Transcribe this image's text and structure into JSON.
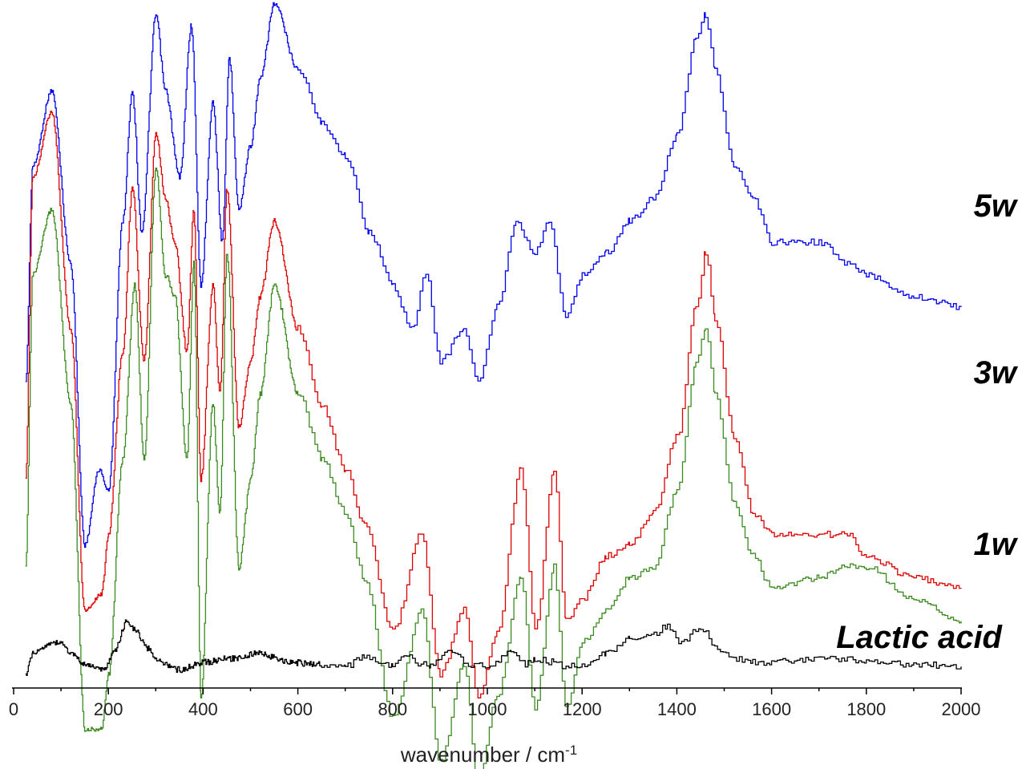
{
  "chart_data": {
    "type": "line",
    "title": "",
    "xlabel": "wavenumber / cm",
    "xlabel_superscript": "-1",
    "ylabel": "",
    "xlim": [
      20,
      2000
    ],
    "xticks": [
      0,
      200,
      400,
      600,
      800,
      1000,
      1200,
      1400,
      1600,
      1800,
      2000
    ],
    "y_axis_shown": false,
    "grid": false,
    "stacked_offsets": true,
    "series": [
      {
        "name": "5w",
        "color": "#0000ee",
        "label_position": "right",
        "points": [
          [
            25,
            350
          ],
          [
            40,
            150
          ],
          [
            80,
            80
          ],
          [
            120,
            240
          ],
          [
            150,
            500
          ],
          [
            180,
            430
          ],
          [
            200,
            450
          ],
          [
            230,
            200
          ],
          [
            250,
            80
          ],
          [
            270,
            210
          ],
          [
            300,
            10
          ],
          [
            320,
            80
          ],
          [
            350,
            160
          ],
          [
            375,
            20
          ],
          [
            395,
            260
          ],
          [
            420,
            90
          ],
          [
            440,
            220
          ],
          [
            455,
            50
          ],
          [
            475,
            190
          ],
          [
            500,
            130
          ],
          [
            520,
            70
          ],
          [
            550,
            0
          ],
          [
            600,
            60
          ],
          [
            650,
            110
          ],
          [
            700,
            140
          ],
          [
            750,
            210
          ],
          [
            800,
            260
          ],
          [
            840,
            300
          ],
          [
            870,
            250
          ],
          [
            900,
            330
          ],
          [
            950,
            300
          ],
          [
            980,
            350
          ],
          [
            1020,
            280
          ],
          [
            1060,
            200
          ],
          [
            1100,
            230
          ],
          [
            1130,
            200
          ],
          [
            1165,
            290
          ],
          [
            1200,
            250
          ],
          [
            1250,
            230
          ],
          [
            1300,
            200
          ],
          [
            1350,
            180
          ],
          [
            1400,
            120
          ],
          [
            1440,
            30
          ],
          [
            1460,
            10
          ],
          [
            1480,
            60
          ],
          [
            1520,
            150
          ],
          [
            1560,
            180
          ],
          [
            1600,
            220
          ],
          [
            1700,
            220
          ],
          [
            1760,
            240
          ],
          [
            1800,
            250
          ],
          [
            1900,
            270
          ],
          [
            2000,
            280
          ]
        ]
      },
      {
        "name": "3w",
        "color": "#dd0000",
        "label_position": "right",
        "points": [
          [
            25,
            440
          ],
          [
            40,
            160
          ],
          [
            80,
            100
          ],
          [
            120,
            300
          ],
          [
            150,
            560
          ],
          [
            185,
            545
          ],
          [
            200,
            490
          ],
          [
            230,
            320
          ],
          [
            250,
            170
          ],
          [
            275,
            330
          ],
          [
            300,
            120
          ],
          [
            320,
            180
          ],
          [
            340,
            220
          ],
          [
            365,
            320
          ],
          [
            380,
            190
          ],
          [
            395,
            440
          ],
          [
            420,
            260
          ],
          [
            435,
            360
          ],
          [
            450,
            170
          ],
          [
            475,
            390
          ],
          [
            500,
            330
          ],
          [
            520,
            270
          ],
          [
            550,
            200
          ],
          [
            600,
            300
          ],
          [
            650,
            370
          ],
          [
            700,
            430
          ],
          [
            740,
            480
          ],
          [
            800,
            580
          ],
          [
            860,
            490
          ],
          [
            900,
            620
          ],
          [
            950,
            560
          ],
          [
            980,
            640
          ],
          [
            1020,
            580
          ],
          [
            1070,
            430
          ],
          [
            1100,
            580
          ],
          [
            1140,
            430
          ],
          [
            1165,
            570
          ],
          [
            1200,
            550
          ],
          [
            1250,
            510
          ],
          [
            1300,
            500
          ],
          [
            1350,
            470
          ],
          [
            1400,
            400
          ],
          [
            1440,
            280
          ],
          [
            1460,
            230
          ],
          [
            1480,
            290
          ],
          [
            1520,
            400
          ],
          [
            1560,
            470
          ],
          [
            1600,
            490
          ],
          [
            1700,
            490
          ],
          [
            1760,
            490
          ],
          [
            1800,
            510
          ],
          [
            1900,
            530
          ],
          [
            2000,
            540
          ]
        ]
      },
      {
        "name": "1w",
        "color": "#3a8a1e",
        "label_position": "right",
        "points": [
          [
            25,
            520
          ],
          [
            40,
            250
          ],
          [
            80,
            190
          ],
          [
            120,
            370
          ],
          [
            150,
            670
          ],
          [
            185,
            670
          ],
          [
            200,
            620
          ],
          [
            230,
            420
          ],
          [
            255,
            260
          ],
          [
            275,
            420
          ],
          [
            300,
            150
          ],
          [
            320,
            250
          ],
          [
            340,
            270
          ],
          [
            365,
            420
          ],
          [
            380,
            240
          ],
          [
            395,
            640
          ],
          [
            420,
            370
          ],
          [
            435,
            470
          ],
          [
            450,
            230
          ],
          [
            475,
            520
          ],
          [
            500,
            440
          ],
          [
            520,
            360
          ],
          [
            550,
            260
          ],
          [
            600,
            360
          ],
          [
            650,
            420
          ],
          [
            700,
            470
          ],
          [
            740,
            530
          ],
          [
            800,
            660
          ],
          [
            860,
            560
          ],
          [
            900,
            700
          ],
          [
            950,
            610
          ],
          [
            980,
            720
          ],
          [
            1020,
            640
          ],
          [
            1070,
            530
          ],
          [
            1100,
            650
          ],
          [
            1140,
            520
          ],
          [
            1165,
            650
          ],
          [
            1200,
            590
          ],
          [
            1250,
            560
          ],
          [
            1300,
            530
          ],
          [
            1350,
            520
          ],
          [
            1400,
            450
          ],
          [
            1440,
            330
          ],
          [
            1460,
            300
          ],
          [
            1480,
            360
          ],
          [
            1520,
            460
          ],
          [
            1560,
            510
          ],
          [
            1600,
            540
          ],
          [
            1700,
            530
          ],
          [
            1760,
            520
          ],
          [
            1800,
            520
          ],
          [
            1900,
            550
          ],
          [
            2000,
            570
          ]
        ]
      },
      {
        "name": "Lactic acid",
        "color": "#000000",
        "label_position": "right",
        "points": [
          [
            25,
            620
          ],
          [
            40,
            600
          ],
          [
            80,
            590
          ],
          [
            100,
            590
          ],
          [
            120,
            600
          ],
          [
            150,
            610
          ],
          [
            190,
            615
          ],
          [
            210,
            600
          ],
          [
            240,
            570
          ],
          [
            260,
            580
          ],
          [
            280,
            595
          ],
          [
            310,
            608
          ],
          [
            350,
            615
          ],
          [
            400,
            608
          ],
          [
            450,
            605
          ],
          [
            520,
            600
          ],
          [
            580,
            608
          ],
          [
            650,
            610
          ],
          [
            700,
            612
          ],
          [
            740,
            602
          ],
          [
            780,
            610
          ],
          [
            800,
            612
          ],
          [
            830,
            602
          ],
          [
            860,
            610
          ],
          [
            880,
            612
          ],
          [
            920,
            598
          ],
          [
            960,
            610
          ],
          [
            1000,
            612
          ],
          [
            1050,
            598
          ],
          [
            1080,
            610
          ],
          [
            1100,
            605
          ],
          [
            1140,
            608
          ],
          [
            1160,
            612
          ],
          [
            1200,
            610
          ],
          [
            1250,
            600
          ],
          [
            1300,
            585
          ],
          [
            1340,
            585
          ],
          [
            1380,
            575
          ],
          [
            1410,
            590
          ],
          [
            1450,
            575
          ],
          [
            1480,
            595
          ],
          [
            1520,
            605
          ],
          [
            1560,
            608
          ],
          [
            1600,
            608
          ],
          [
            1700,
            605
          ],
          [
            1760,
            605
          ],
          [
            1800,
            608
          ],
          [
            1900,
            610
          ],
          [
            2000,
            612
          ]
        ]
      }
    ]
  }
}
